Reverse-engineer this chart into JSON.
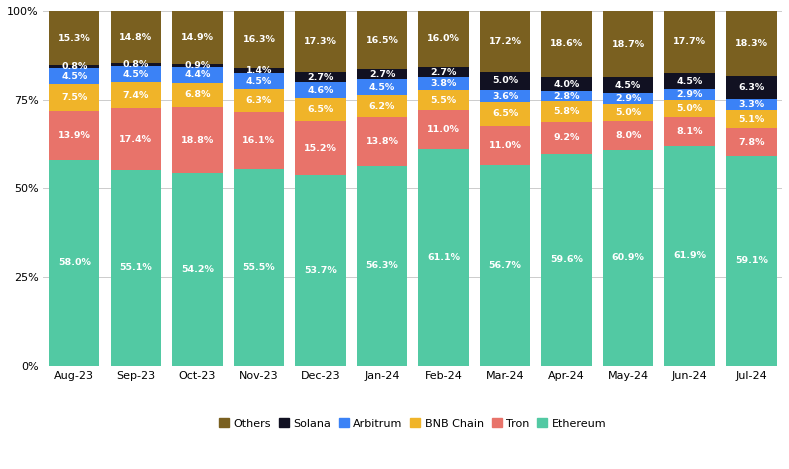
{
  "categories": [
    "Aug-23",
    "Sep-23",
    "Oct-23",
    "Nov-23",
    "Dec-23",
    "Jan-24",
    "Feb-24",
    "Mar-24",
    "Apr-24",
    "May-24",
    "Jun-24",
    "Jul-24"
  ],
  "series": {
    "Ethereum": [
      58.0,
      55.1,
      54.2,
      55.5,
      53.7,
      56.3,
      61.1,
      56.7,
      59.6,
      60.9,
      61.9,
      59.1
    ],
    "Tron": [
      13.9,
      17.4,
      18.8,
      16.1,
      15.2,
      13.8,
      11.0,
      11.0,
      9.2,
      8.0,
      8.1,
      7.8
    ],
    "BNB Chain": [
      7.5,
      7.4,
      6.8,
      6.3,
      6.5,
      6.2,
      5.5,
      6.5,
      5.8,
      5.0,
      5.0,
      5.1
    ],
    "Arbitrum": [
      4.5,
      4.5,
      4.4,
      4.5,
      4.6,
      4.5,
      3.8,
      3.6,
      2.8,
      2.9,
      2.9,
      3.3
    ],
    "Solana": [
      0.8,
      0.8,
      0.9,
      1.4,
      2.7,
      2.7,
      2.7,
      5.0,
      4.0,
      4.5,
      4.5,
      6.3
    ],
    "Others": [
      15.3,
      14.8,
      14.9,
      16.3,
      17.3,
      16.5,
      16.0,
      17.2,
      18.6,
      18.7,
      17.7,
      18.3
    ]
  },
  "colors": {
    "Ethereum": "#52C9A3",
    "Tron": "#E8736A",
    "BNB Chain": "#F0B429",
    "Arbitrum": "#3B82F6",
    "Solana": "#111122",
    "Others": "#7A6020"
  },
  "order": [
    "Ethereum",
    "Tron",
    "BNB Chain",
    "Arbitrum",
    "Solana",
    "Others"
  ],
  "ylim": [
    0,
    100
  ],
  "yticks": [
    0,
    25,
    50,
    75,
    100
  ],
  "ytick_labels": [
    "0%",
    "25%",
    "50%",
    "75%",
    "100%"
  ],
  "background_color": "#FFFFFF",
  "bar_width": 0.82
}
